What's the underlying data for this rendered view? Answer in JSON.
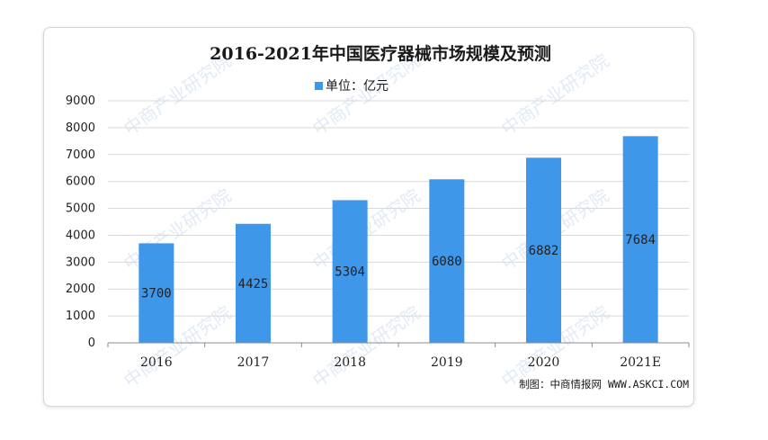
{
  "chart_data": {
    "type": "bar",
    "title": "2016-2021年中国医疗器械市场规模及预测",
    "legend": "单位：亿元",
    "categories": [
      "2016",
      "2017",
      "2018",
      "2019",
      "2020",
      "2021E"
    ],
    "series": [
      {
        "values": [
          3700,
          4425,
          5304,
          6080,
          6882,
          7684
        ]
      }
    ],
    "ylim": [
      0,
      9000
    ],
    "yticks": [
      0,
      1000,
      2000,
      3000,
      4000,
      5000,
      6000,
      7000,
      8000,
      9000
    ],
    "grid": true,
    "legend_position": "top-center",
    "bar_color": "#3f97ea",
    "source": "制图：中商情报网 WWW.ASKCI.COM",
    "watermark": "中商产业研究院"
  }
}
